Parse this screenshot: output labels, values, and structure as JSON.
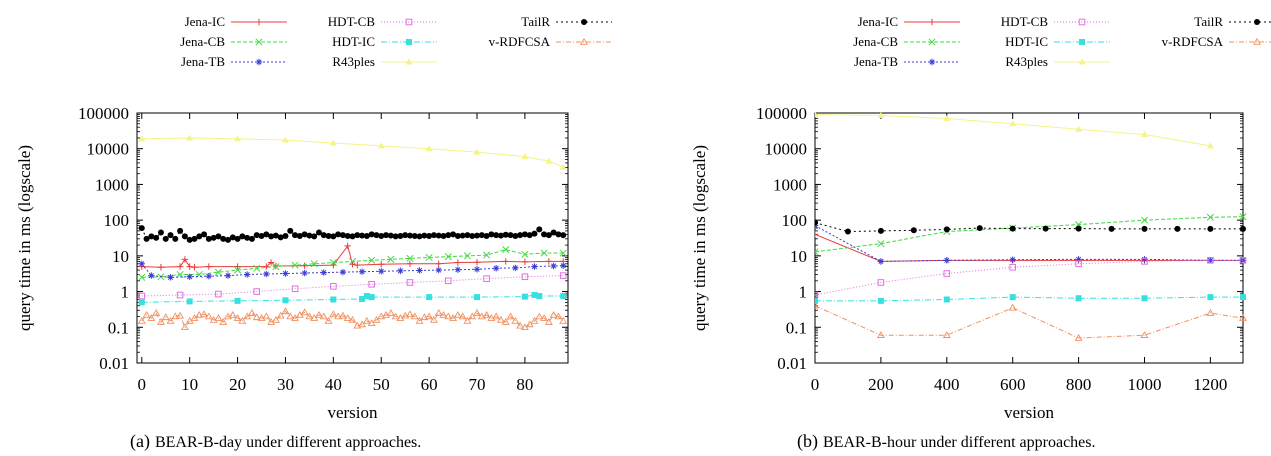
{
  "panels": [
    {
      "caption_letter": "(a)",
      "caption_text": "BEAR-B-day under different approaches."
    },
    {
      "caption_letter": "(b)",
      "caption_text": "BEAR-B-hour under different approaches."
    }
  ],
  "legend_entries": [
    {
      "name": "Jena-IC",
      "color": "#e83c3c",
      "marker": "plus",
      "dash": ""
    },
    {
      "name": "Jena-CB",
      "color": "#44d844",
      "marker": "x",
      "dash": "4,2"
    },
    {
      "name": "Jena-TB",
      "color": "#3c3cd8",
      "marker": "star",
      "dash": "2,2"
    },
    {
      "name": "HDT-CB",
      "color": "#e070e0",
      "marker": "square-open",
      "dash": "1,2"
    },
    {
      "name": "HDT-IC",
      "color": "#36e0e0",
      "marker": "square-filled",
      "dash": "6,2,1,2"
    },
    {
      "name": "R43ples",
      "color": "#f4f488",
      "marker": "triangle-filled",
      "dash": ""
    },
    {
      "name": "TailR",
      "color": "#000000",
      "marker": "circle-filled",
      "dash": "2,3"
    },
    {
      "name": "v-RDFCSA",
      "color": "#f09060",
      "marker": "triangle-open",
      "dash": "5,2,1,2"
    }
  ],
  "chart_data": [
    {
      "type": "line",
      "title": "",
      "xlabel": "version",
      "ylabel": "query time in ms (logscale)",
      "log_y": true,
      "grid": false,
      "legend": "top",
      "xlim": [
        -1,
        89
      ],
      "ylim": [
        0.01,
        100000
      ],
      "x_ticks": [
        "0",
        "10",
        "20",
        "30",
        "40",
        "50",
        "60",
        "70",
        "80"
      ],
      "y_ticks": [
        "0.01",
        "0.1",
        "1",
        "10",
        "100",
        "1000",
        "10000",
        "100000"
      ],
      "series": [
        {
          "name": "Jena-IC",
          "x": [
            0,
            4,
            8,
            9,
            10,
            11,
            14,
            20,
            26,
            27,
            28,
            34,
            40,
            43,
            44,
            45,
            50,
            56,
            62,
            66,
            70,
            76,
            80,
            85,
            88
          ],
          "values": [
            5,
            4.8,
            5,
            8,
            5,
            4.8,
            5,
            5,
            5,
            6.5,
            5.2,
            5.3,
            5.5,
            19,
            5.8,
            5.5,
            5.8,
            6,
            6,
            6.5,
            6.6,
            7,
            6.8,
            7,
            7
          ]
        },
        {
          "name": "Jena-CB",
          "x": [
            0,
            4,
            8,
            12,
            16,
            20,
            24,
            28,
            32,
            36,
            40,
            44,
            48,
            52,
            56,
            60,
            64,
            68,
            72,
            76,
            80,
            84,
            88
          ],
          "values": [
            2.5,
            2.6,
            3,
            3,
            3.5,
            4,
            4.5,
            5,
            5.5,
            6,
            6.5,
            7,
            7.5,
            8,
            8.5,
            9,
            9.5,
            10,
            10.5,
            15,
            11,
            12,
            12
          ]
        },
        {
          "name": "Jena-TB",
          "x": [
            0,
            2,
            6,
            10,
            14,
            18,
            22,
            26,
            30,
            34,
            38,
            42,
            46,
            50,
            54,
            58,
            62,
            66,
            70,
            74,
            78,
            82,
            86,
            88
          ],
          "values": [
            6,
            2.8,
            2.5,
            2.6,
            2.7,
            2.8,
            3,
            3.1,
            3.2,
            3.3,
            3.4,
            3.5,
            3.6,
            3.7,
            3.8,
            3.9,
            4,
            4.1,
            4.2,
            4.5,
            4.6,
            5,
            5.2,
            5.3
          ]
        },
        {
          "name": "HDT-CB",
          "x": [
            0,
            8,
            16,
            24,
            32,
            40,
            48,
            56,
            64,
            72,
            80,
            88
          ],
          "values": [
            0.75,
            0.8,
            0.85,
            1,
            1.2,
            1.4,
            1.6,
            1.8,
            2,
            2.3,
            2.6,
            2.8
          ]
        },
        {
          "name": "HDT-IC",
          "x": [
            0,
            10,
            20,
            30,
            40,
            46,
            47,
            48,
            60,
            70,
            80,
            82,
            83,
            88
          ],
          "values": [
            0.5,
            0.53,
            0.55,
            0.57,
            0.6,
            0.62,
            0.75,
            0.7,
            0.7,
            0.7,
            0.72,
            0.8,
            0.75,
            0.75
          ]
        },
        {
          "name": "R43ples",
          "x": [
            0,
            10,
            20,
            30,
            40,
            50,
            60,
            70,
            80,
            85,
            88
          ],
          "values": [
            19000,
            20000,
            19000,
            17500,
            14500,
            12000,
            10000,
            8000,
            6000,
            4500,
            3000
          ]
        },
        {
          "name": "TailR",
          "x": [
            0,
            1,
            2,
            3,
            4,
            5,
            6,
            7,
            8,
            9,
            10,
            11,
            12,
            13,
            14,
            15,
            16,
            17,
            18,
            19,
            20,
            21,
            22,
            23,
            24,
            25,
            26,
            27,
            28,
            29,
            30,
            31,
            32,
            33,
            34,
            35,
            36,
            37,
            38,
            39,
            40,
            41,
            42,
            43,
            44,
            45,
            46,
            47,
            48,
            49,
            50,
            51,
            52,
            53,
            54,
            55,
            56,
            57,
            58,
            59,
            60,
            61,
            62,
            63,
            64,
            65,
            66,
            67,
            68,
            69,
            70,
            71,
            72,
            73,
            74,
            75,
            76,
            77,
            78,
            79,
            80,
            81,
            82,
            83,
            84,
            85,
            86,
            87,
            88
          ],
          "values": [
            60,
            30,
            35,
            32,
            45,
            30,
            38,
            30,
            50,
            35,
            28,
            30,
            35,
            40,
            30,
            32,
            35,
            30,
            28,
            33,
            30,
            35,
            32,
            30,
            38,
            36,
            40,
            35,
            37,
            33,
            36,
            50,
            38,
            36,
            40,
            37,
            35,
            45,
            38,
            36,
            35,
            40,
            38,
            36,
            35,
            38,
            37,
            36,
            40,
            38,
            36,
            38,
            37,
            35,
            36,
            38,
            37,
            36,
            35,
            37,
            36,
            38,
            37,
            36,
            38,
            40,
            36,
            37,
            38,
            36,
            37,
            38,
            36,
            40,
            38,
            37,
            39,
            38,
            36,
            38,
            40,
            38,
            42,
            55,
            40,
            38,
            45,
            40,
            38
          ]
        },
        {
          "name": "v-RDFCSA",
          "x": [
            0,
            1,
            2,
            3,
            4,
            5,
            6,
            7,
            8,
            9,
            10,
            11,
            12,
            13,
            14,
            15,
            16,
            17,
            18,
            19,
            20,
            21,
            22,
            23,
            24,
            25,
            26,
            27,
            28,
            29,
            30,
            31,
            32,
            33,
            34,
            35,
            36,
            37,
            38,
            39,
            40,
            41,
            42,
            43,
            44,
            45,
            46,
            47,
            48,
            49,
            50,
            51,
            52,
            53,
            54,
            55,
            56,
            57,
            58,
            59,
            60,
            61,
            62,
            63,
            64,
            65,
            66,
            67,
            68,
            69,
            70,
            71,
            72,
            73,
            74,
            75,
            76,
            77,
            78,
            79,
            80,
            81,
            82,
            83,
            84,
            85,
            86,
            87,
            88
          ],
          "values": [
            0.15,
            0.22,
            0.18,
            0.25,
            0.14,
            0.19,
            0.15,
            0.2,
            0.21,
            0.1,
            0.15,
            0.18,
            0.22,
            0.23,
            0.2,
            0.16,
            0.18,
            0.14,
            0.2,
            0.22,
            0.18,
            0.15,
            0.2,
            0.25,
            0.19,
            0.18,
            0.2,
            0.14,
            0.16,
            0.21,
            0.28,
            0.2,
            0.18,
            0.22,
            0.26,
            0.2,
            0.18,
            0.22,
            0.2,
            0.15,
            0.23,
            0.2,
            0.21,
            0.18,
            0.16,
            0.11,
            0.12,
            0.15,
            0.13,
            0.16,
            0.2,
            0.22,
            0.25,
            0.2,
            0.18,
            0.21,
            0.23,
            0.2,
            0.15,
            0.19,
            0.2,
            0.16,
            0.25,
            0.22,
            0.2,
            0.18,
            0.22,
            0.2,
            0.15,
            0.2,
            0.25,
            0.2,
            0.22,
            0.18,
            0.2,
            0.16,
            0.14,
            0.2,
            0.15,
            0.11,
            0.1,
            0.12,
            0.15,
            0.2,
            0.18,
            0.14,
            0.22,
            0.2,
            0.15
          ]
        }
      ]
    },
    {
      "type": "line",
      "title": "",
      "xlabel": "version",
      "ylabel": "query time in ms (logscale)",
      "log_y": true,
      "grid": false,
      "legend": "top",
      "xlim": [
        0,
        1299
      ],
      "ylim": [
        0.01,
        100000
      ],
      "x_ticks": [
        "0",
        "200",
        "400",
        "600",
        "800",
        "1000",
        "1200"
      ],
      "y_ticks": [
        "0.01",
        "0.1",
        "1",
        "10",
        "100",
        "1000",
        "10000",
        "100000"
      ],
      "series": [
        {
          "name": "Jena-IC",
          "x": [
            0,
            200,
            400,
            600,
            800,
            1000,
            1200,
            1299
          ],
          "values": [
            40,
            7,
            7.5,
            7.5,
            7.5,
            7.5,
            7.5,
            7.5
          ]
        },
        {
          "name": "Jena-CB",
          "x": [
            0,
            200,
            400,
            600,
            800,
            1000,
            1200,
            1299
          ],
          "values": [
            13,
            22,
            48,
            60,
            75,
            100,
            120,
            125
          ]
        },
        {
          "name": "Jena-TB",
          "x": [
            0,
            200,
            400,
            600,
            800,
            1000,
            1200,
            1299
          ],
          "values": [
            70,
            7,
            7.5,
            7.8,
            8,
            8,
            7.5,
            7.5
          ]
        },
        {
          "name": "HDT-CB",
          "x": [
            0,
            200,
            400,
            600,
            800,
            1000,
            1200,
            1299
          ],
          "values": [
            0.8,
            1.8,
            3.2,
            4.8,
            6,
            7,
            7.5,
            7.5
          ]
        },
        {
          "name": "HDT-IC",
          "x": [
            0,
            200,
            400,
            600,
            800,
            1000,
            1200,
            1299
          ],
          "values": [
            0.55,
            0.55,
            0.6,
            0.7,
            0.65,
            0.65,
            0.7,
            0.7
          ]
        },
        {
          "name": "R43ples",
          "x": [
            0,
            200,
            400,
            600,
            800,
            1000,
            1200
          ],
          "values": [
            90000,
            85000,
            70000,
            50000,
            35000,
            25000,
            12000
          ]
        },
        {
          "name": "TailR",
          "x": [
            0,
            100,
            200,
            300,
            400,
            500,
            600,
            700,
            800,
            900,
            1000,
            1100,
            1200,
            1299
          ],
          "values": [
            85,
            48,
            50,
            52,
            55,
            60,
            58,
            58,
            58,
            57,
            57,
            57,
            57,
            57
          ]
        },
        {
          "name": "v-RDFCSA",
          "x": [
            0,
            200,
            400,
            600,
            800,
            1000,
            1200,
            1299
          ],
          "values": [
            0.4,
            0.06,
            0.06,
            0.35,
            0.05,
            0.06,
            0.25,
            0.18
          ]
        }
      ]
    }
  ]
}
